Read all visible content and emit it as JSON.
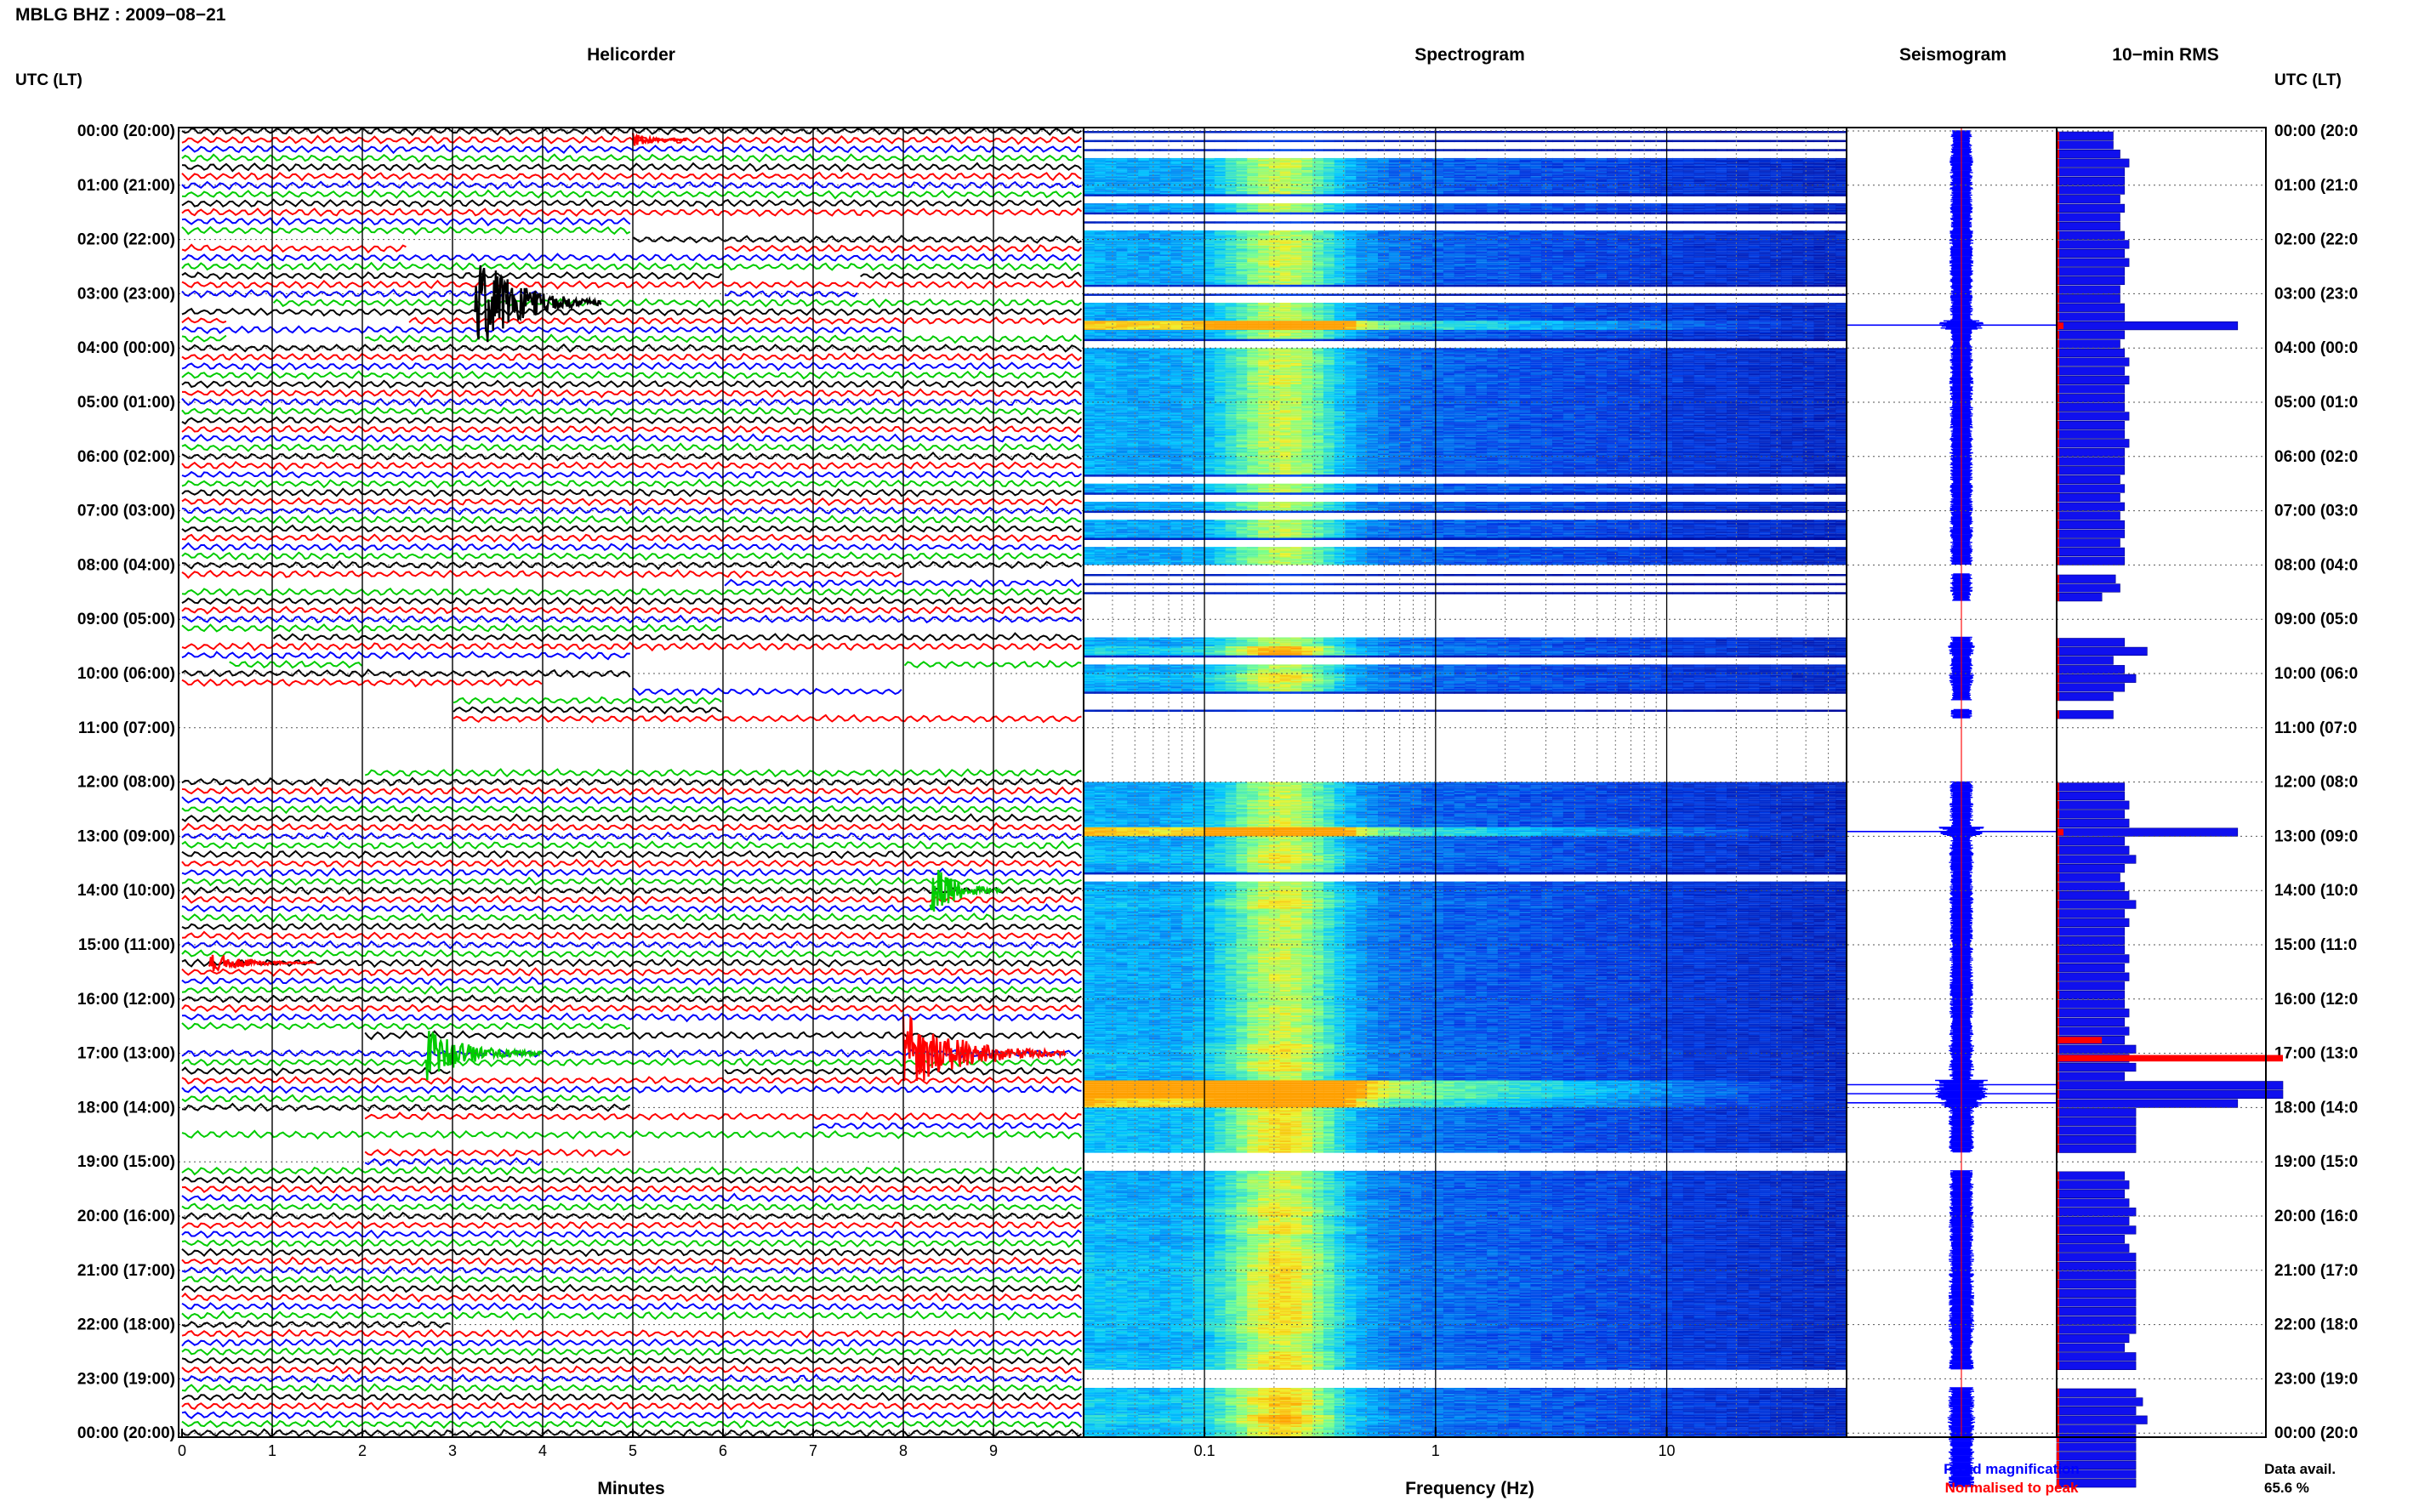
{
  "header": {
    "title": "MBLG BHZ : 2009−08−21",
    "left_axis_label": "UTC (LT)",
    "right_axis_label": "UTC (LT)"
  },
  "panels": {
    "helicorder": "Helicorder",
    "spectrogram": "Spectrogram",
    "seismogram": "Seismogram",
    "rms": "10−min RMS"
  },
  "hour_labels_left": [
    "00:00 (20:00)",
    "01:00 (21:00)",
    "02:00 (22:00)",
    "03:00 (23:00)",
    "04:00 (00:00)",
    "05:00 (01:00)",
    "06:00 (02:00)",
    "07:00 (03:00)",
    "08:00 (04:00)",
    "09:00 (05:00)",
    "10:00 (06:00)",
    "11:00 (07:00)",
    "12:00 (08:00)",
    "13:00 (09:00)",
    "14:00 (10:00)",
    "15:00 (11:00)",
    "16:00 (12:00)",
    "17:00 (13:00)",
    "18:00 (14:00)",
    "19:00 (15:00)",
    "20:00 (16:00)",
    "21:00 (17:00)",
    "22:00 (18:00)",
    "23:00 (19:00)",
    "00:00 (20:00)"
  ],
  "hour_labels_right": [
    "00:00 (20:0",
    "01:00 (21:0",
    "02:00 (22:0",
    "03:00 (23:0",
    "04:00 (00:0",
    "05:00 (01:0",
    "06:00 (02:0",
    "07:00 (03:0",
    "08:00 (04:0",
    "09:00 (05:0",
    "10:00 (06:0",
    "11:00 (07:0",
    "12:00 (08:0",
    "13:00 (09:0",
    "14:00 (10:0",
    "15:00 (11:0",
    "16:00 (12:0",
    "17:00 (13:0",
    "18:00 (14:0",
    "19:00 (15:0",
    "20:00 (16:0",
    "21:00 (17:0",
    "22:00 (18:0",
    "23:00 (19:0",
    "00:00 (20:0"
  ],
  "helicorder": {
    "xlabel": "Minutes",
    "ticks": [
      "0",
      "1",
      "2",
      "3",
      "4",
      "5",
      "6",
      "7",
      "8",
      "9"
    ],
    "line_colors": [
      "#000000",
      "#ff0000",
      "#0000ff",
      "#00cc00"
    ]
  },
  "spectrogram": {
    "xlabel": "Frequency (Hz)",
    "ticks": [
      "0.1",
      "1",
      "10"
    ],
    "scale": "log"
  },
  "legend": {
    "fixed": "Fixed magnification",
    "fixed_color": "#0000ff",
    "normalised": "Normalised to peak",
    "normalised_color": "#ff0000"
  },
  "data_availability": {
    "label": "Data avail.",
    "value": "65.6 %"
  },
  "chart_data": {
    "type": "helicorder-spectrogram-rms",
    "title": "MBLG BHZ : 2009−08−21",
    "rows_per_hour": 6,
    "hours": 24,
    "gaps": [
      [
        10.5,
        11.0
      ],
      [
        11.5,
        12.5
      ],
      [
        13.25,
        13.6
      ],
      [
        16.6,
        16.75
      ],
      [
        18.4,
        18.6
      ],
      [
        18.75,
        19.1
      ],
      [
        21.05,
        21.25
      ],
      [
        22.8,
        23.0
      ],
      [
        23.05,
        23.2
      ],
      [
        49.8,
        50.6
      ],
      [
        55.6,
        56.1
      ],
      [
        58.5,
        59.05
      ],
      [
        59.2,
        59.8
      ],
      [
        60.5,
        61.0
      ],
      [
        61.4,
        62.5
      ],
      [
        62.8,
        63.3
      ],
      [
        63.6,
        64.3
      ],
      [
        64.6,
        65.3
      ],
      [
        66.0,
        67.0
      ],
      [
        67.0,
        71.2
      ],
      [
        99.5,
        100.2
      ],
      [
        101.0,
        102.0
      ],
      [
        104.3,
        104.6
      ],
      [
        107.5,
        108.0
      ],
      [
        108.5,
        109.2
      ],
      [
        110.0,
        110.7
      ],
      [
        112.0,
        113.2
      ],
      [
        113.5,
        114.2
      ],
      [
        114.4,
        115.0
      ],
      [
        132.3,
        133.0
      ]
    ],
    "events": [
      {
        "row": 19,
        "minute": 3.25,
        "duration": 1.4,
        "amp": 4.5,
        "color": "black"
      },
      {
        "row": 84,
        "minute": 8.3,
        "duration": 0.8,
        "amp": 2.5,
        "color": "green"
      },
      {
        "row": 92,
        "minute": 0.3,
        "duration": 1.2,
        "amp": 0.8,
        "color": "red"
      },
      {
        "row": 102,
        "minute": 8.0,
        "duration": 1.8,
        "amp": 3.5,
        "color": "red"
      },
      {
        "row": 102,
        "minute": 2.7,
        "duration": 1.3,
        "amp": 2.5,
        "color": "green"
      },
      {
        "row": 1,
        "minute": 5.0,
        "duration": 0.6,
        "amp": 0.6,
        "color": "red"
      }
    ],
    "rms_levels": [
      0.25,
      0.25,
      0.28,
      0.32,
      0.3,
      0.3,
      0.3,
      0.28,
      0.3,
      0.28,
      0.28,
      0.3,
      0.32,
      0.3,
      0.32,
      0.3,
      0.3,
      0.28,
      0.28,
      0.3,
      0.3,
      0.8,
      0.3,
      0.28,
      0.3,
      0.32,
      0.3,
      0.32,
      0.3,
      0.3,
      0.3,
      0.32,
      0.3,
      0.3,
      0.32,
      0.3,
      0.3,
      0.3,
      0.28,
      0.3,
      0.28,
      0.3,
      0.28,
      0.3,
      0.3,
      0.28,
      0.3,
      0.3,
      0.0,
      0.26,
      0.28,
      0.2,
      0.0,
      0.0,
      0.0,
      0.0,
      0.3,
      0.4,
      0.25,
      0.3,
      0.35,
      0.3,
      0.25,
      0.0,
      0.25,
      0.0,
      0.0,
      0.0,
      0.0,
      0.0,
      0.0,
      0.0,
      0.3,
      0.3,
      0.32,
      0.3,
      0.32,
      0.8,
      0.3,
      0.32,
      0.35,
      0.3,
      0.28,
      0.3,
      0.32,
      0.35,
      0.3,
      0.32,
      0.3,
      0.3,
      0.3,
      0.32,
      0.3,
      0.32,
      0.3,
      0.3,
      0.3,
      0.32,
      0.3,
      0.32,
      0.3,
      0.35,
      0.32,
      0.35,
      0.3,
      1.0,
      1.0,
      0.8,
      0.35,
      0.35,
      0.35,
      0.35,
      0.35,
      0.0,
      0.0,
      0.3,
      0.32,
      0.3,
      0.32,
      0.35,
      0.32,
      0.35,
      0.3,
      0.32,
      0.35,
      0.35,
      0.35,
      0.35,
      0.35,
      0.35,
      0.35,
      0.35,
      0.35,
      0.32,
      0.3,
      0.35,
      0.35,
      0.0,
      0.0,
      0.35,
      0.38,
      0.35,
      0.4,
      0.35,
      0.35,
      0.35,
      0.35,
      0.35,
      0.35,
      0.35
    ],
    "rms_normalised_marks": [
      [
        21,
        0.03
      ],
      [
        77,
        0.03
      ],
      [
        100,
        0.2
      ],
      [
        102,
        1.0
      ]
    ],
    "spectrogram_peak_hz": 0.22,
    "freq_range_hz": [
      0.03,
      60
    ]
  }
}
